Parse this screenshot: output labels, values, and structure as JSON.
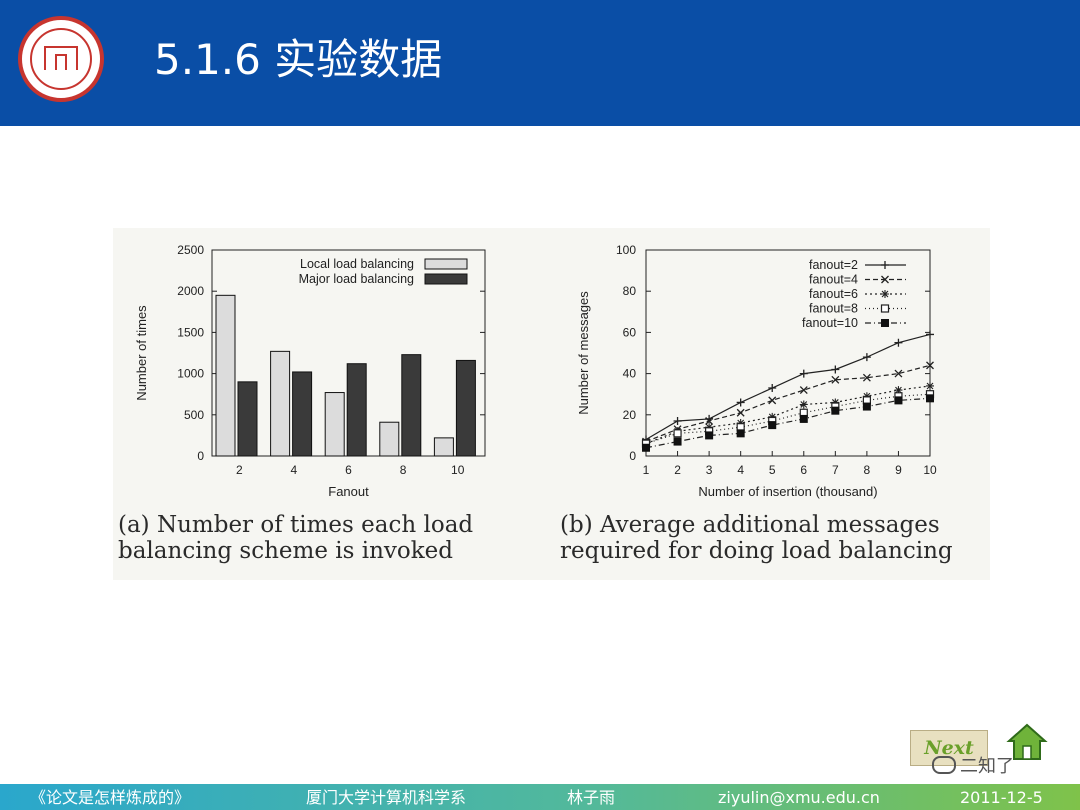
{
  "slide": {
    "title": "5.1.6 实验数据",
    "logo_icon": "university-seal-icon"
  },
  "footer": {
    "book": "《论文是怎样炼成的》",
    "dept": "厦门大学计算机科学系",
    "author": "林子雨",
    "email": "ziyulin@xmu.edu.cn",
    "date": "2011-12-5"
  },
  "nav": {
    "next_label": "Next",
    "home_icon": "home-icon"
  },
  "watermark": "二知了",
  "captions": {
    "a_line1": "(a)  Number  of  times  each  load",
    "a_line2": "balancing scheme is invoked",
    "b_line1": "(b)  Average  additional  messages",
    "b_line2": "required for doing load balancing"
  },
  "colors": {
    "header": "#0a4ea6",
    "local_bar": "#dcdcdc",
    "major_bar": "#3a3a3a"
  },
  "chart_data": [
    {
      "type": "bar",
      "title": "",
      "xlabel": "Fanout",
      "ylabel": "Number of times",
      "categories": [
        "2",
        "4",
        "6",
        "8",
        "10"
      ],
      "ylim": [
        0,
        2500
      ],
      "yticks": [
        0,
        500,
        1000,
        1500,
        2000,
        2500
      ],
      "legend": "top-right",
      "series": [
        {
          "name": "Local load balancing",
          "values": [
            1950,
            1270,
            770,
            410,
            220
          ]
        },
        {
          "name": "Major load balancing",
          "values": [
            900,
            1020,
            1120,
            1230,
            1160
          ]
        }
      ]
    },
    {
      "type": "line",
      "title": "",
      "xlabel": "Number of insertion (thousand)",
      "ylabel": "Number of messages",
      "x": [
        1,
        2,
        3,
        4,
        5,
        6,
        7,
        8,
        9,
        10
      ],
      "ylim": [
        0,
        100
      ],
      "yticks": [
        0,
        20,
        40,
        60,
        80,
        100
      ],
      "legend": "top-right",
      "series": [
        {
          "name": "fanout=2",
          "marker": "+",
          "values": [
            8,
            17,
            18,
            26,
            33,
            40,
            42,
            48,
            55,
            59
          ]
        },
        {
          "name": "fanout=4",
          "marker": "x",
          "values": [
            7,
            13,
            17,
            21,
            27,
            32,
            37,
            38,
            40,
            44
          ]
        },
        {
          "name": "fanout=6",
          "marker": "*",
          "values": [
            6,
            12,
            14,
            16,
            19,
            25,
            26,
            29,
            32,
            34
          ]
        },
        {
          "name": "fanout=8",
          "marker": "open-square",
          "values": [
            6,
            11,
            12,
            14,
            17,
            21,
            24,
            27,
            29,
            30
          ]
        },
        {
          "name": "fanout=10",
          "marker": "filled-square",
          "values": [
            4,
            7,
            10,
            11,
            15,
            18,
            22,
            24,
            27,
            28
          ]
        }
      ]
    }
  ]
}
